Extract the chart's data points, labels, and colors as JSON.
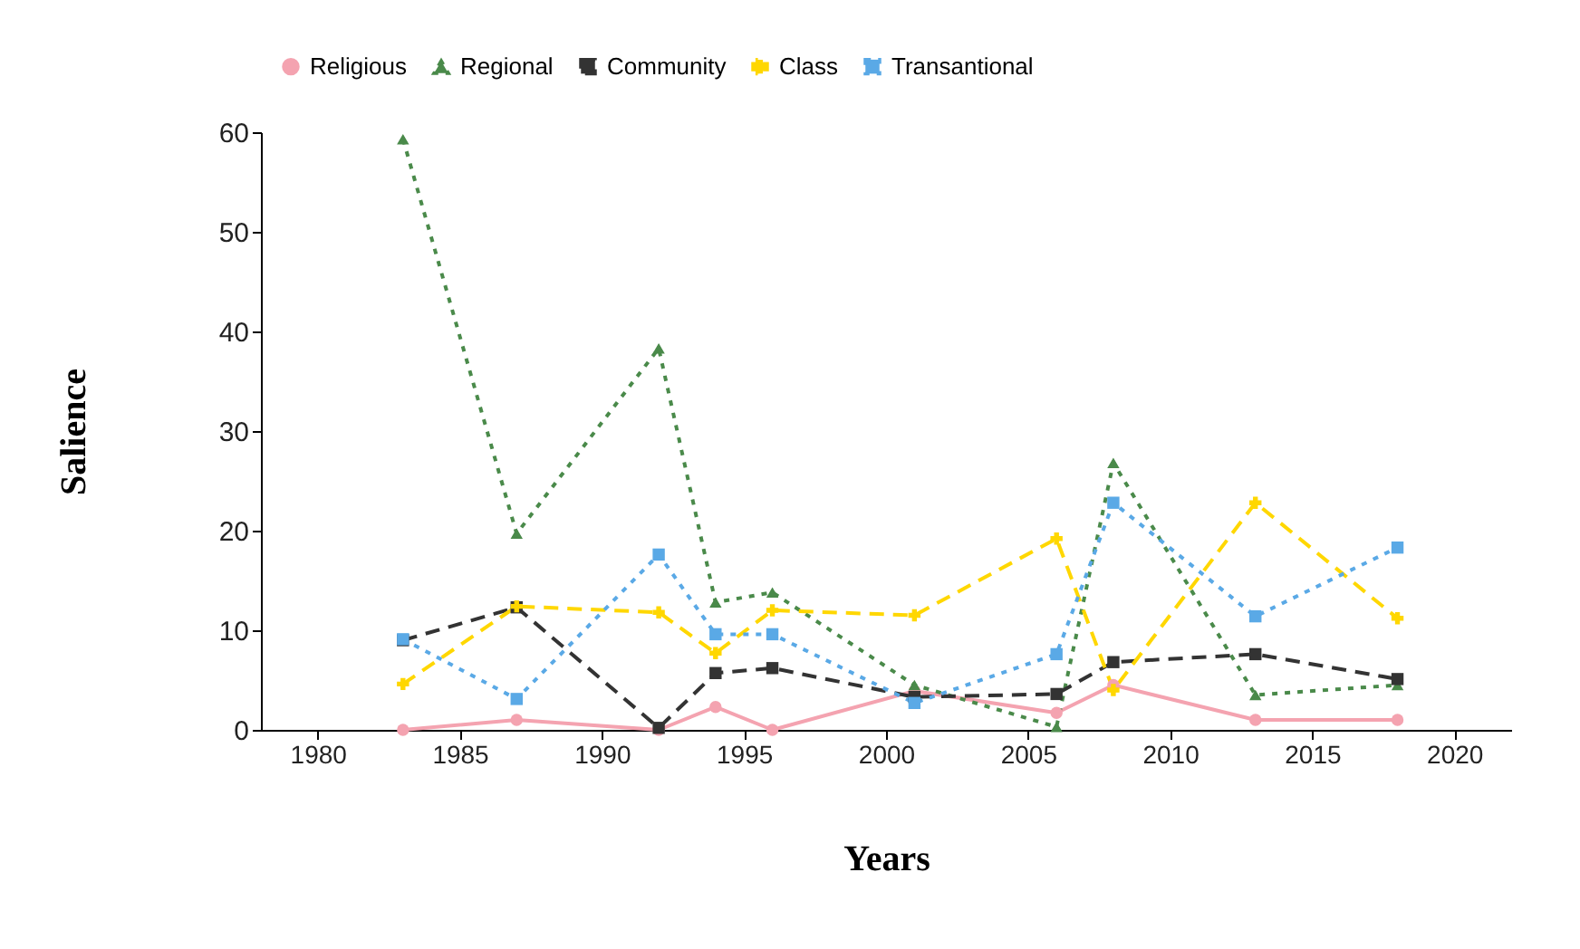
{
  "chart_data": {
    "type": "line",
    "xlabel": "Years",
    "ylabel": "Salience",
    "x": [
      1983,
      1987,
      1992,
      1994,
      1996,
      2001,
      2006,
      2008,
      2013,
      2018
    ],
    "xlim": [
      1978,
      2022
    ],
    "xticks": [
      1980,
      1985,
      1990,
      1995,
      2000,
      2005,
      2010,
      2015,
      2020
    ],
    "ylim": [
      0,
      60
    ],
    "yticks": [
      0,
      10,
      20,
      30,
      40,
      50,
      60
    ],
    "grid": false,
    "legend": "top",
    "series": [
      {
        "name": "Religious",
        "color": "#f4a3b0",
        "marker": "circle",
        "line_style": "solid",
        "values": [
          0,
          1.0,
          0,
          2.3,
          0,
          3.9,
          1.7,
          4.5,
          1.0,
          1.0
        ]
      },
      {
        "name": "Regional",
        "color": "#4a8a4a",
        "marker": "triangle",
        "line_style": "dotted",
        "values": [
          59.3,
          19.7,
          38.3,
          12.8,
          13.8,
          4.5,
          0.3,
          26.8,
          3.5,
          4.5
        ]
      },
      {
        "name": "Community",
        "color": "#333333",
        "marker": "square",
        "line_style": "dashed",
        "values": [
          9.0,
          12.3,
          0.2,
          5.7,
          6.2,
          3.3,
          3.6,
          6.8,
          7.6,
          5.1
        ]
      },
      {
        "name": "Class",
        "color": "#ffd700",
        "marker": "cross",
        "line_style": "dashed",
        "values": [
          4.6,
          12.4,
          11.8,
          7.7,
          12.0,
          11.5,
          19.2,
          4.0,
          22.8,
          11.2
        ]
      },
      {
        "name": "Transantional",
        "color": "#5aa9e6",
        "marker": "square",
        "line_style": "dotted",
        "values": [
          9.1,
          3.1,
          17.6,
          9.6,
          9.6,
          2.7,
          7.6,
          22.8,
          11.4,
          18.3
        ]
      }
    ]
  }
}
